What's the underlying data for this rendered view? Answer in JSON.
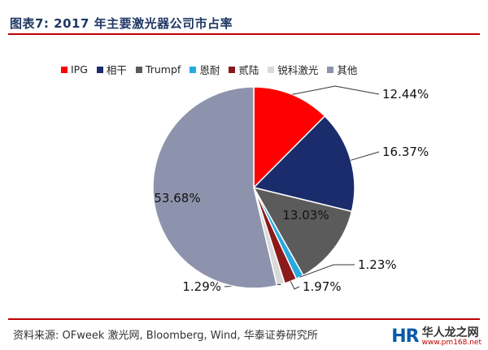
{
  "figure": {
    "title": "图表7:  2017 年主要激光器公司市占率",
    "source": "资料来源: OFweek 激光网, Bloomberg, Wind, 华泰证券研究所"
  },
  "watermark": {
    "logo": "HR",
    "name": "华人龙之网",
    "url": "www.pm168.net"
  },
  "chart_data": {
    "type": "pie",
    "legend_position": "top",
    "series": [
      {
        "name": "IPG",
        "value": 12.44,
        "label": "12.44%",
        "color": "#ff0000"
      },
      {
        "name": "相干",
        "value": 16.37,
        "label": "16.37%",
        "color": "#1a2c6b"
      },
      {
        "name": "Trumpf",
        "value": 13.03,
        "label": "13.03%",
        "color": "#5b5b5b"
      },
      {
        "name": "恩耐",
        "value": 1.23,
        "label": "1.23%",
        "color": "#27a9e1"
      },
      {
        "name": "贰陆",
        "value": 1.97,
        "label": "1.97%",
        "color": "#8b1a1a"
      },
      {
        "name": "锐科激光",
        "value": 1.29,
        "label": "1.29%",
        "color": "#d9d9d9"
      },
      {
        "name": "其他",
        "value": 53.68,
        "label": "53.68%",
        "color": "#8e93ad"
      }
    ]
  }
}
